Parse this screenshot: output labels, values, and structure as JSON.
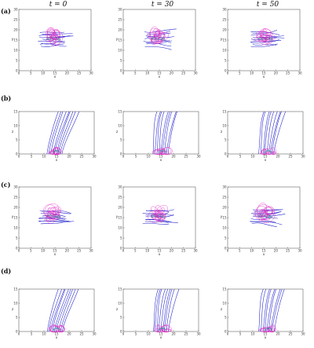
{
  "figure": {
    "column_titles": [
      "t = 0",
      "t = 30",
      "t = 50"
    ],
    "row_labels": [
      "(a)",
      "(b)",
      "(c)",
      "(d)"
    ],
    "top_view": {
      "xlabel": "x",
      "ylabel": "y",
      "x_ticks": [
        "0",
        "5",
        "10",
        "15",
        "20",
        "25",
        "30"
      ],
      "y_ticks": [
        "0",
        "5",
        "10",
        "15",
        "20",
        "25",
        "30"
      ]
    },
    "side_view": {
      "xlabel": "x",
      "ylabel": "z",
      "x_ticks": [
        "0",
        "5",
        "10",
        "15",
        "20",
        "25",
        "30"
      ],
      "y_ticks": [
        "0",
        "5",
        "10",
        "15"
      ]
    },
    "colors": {
      "field_lines": "#2222cc",
      "flux_rope": "#e020c0",
      "core": "#1a9a9a",
      "axes": "#444444"
    }
  }
}
